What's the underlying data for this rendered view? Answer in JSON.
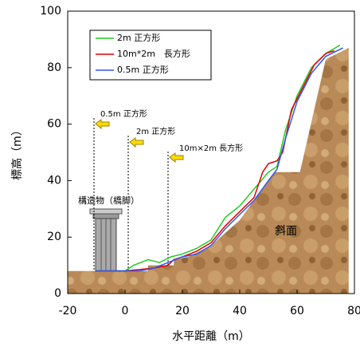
{
  "chart_data": {
    "type": "line",
    "x_label": "水平距離（m）",
    "y_label": "標高（m）",
    "xlim": [
      -20,
      80
    ],
    "xticks": [
      -20,
      0,
      20,
      40,
      60,
      80
    ],
    "ylim": [
      0,
      100
    ],
    "yticks": [
      0,
      20,
      40,
      60,
      80,
      100
    ],
    "grid": false,
    "legend": "upper left",
    "annotations": [
      "0.5m 正方形",
      "2m 正方形",
      "10m×2m 長方形",
      "構造物（橋脚）",
      "斜面"
    ],
    "series": [
      {
        "name": "2m 正方形",
        "color": "#22cc22",
        "x": [
          -10,
          0,
          3,
          8,
          12,
          16,
          20,
          25,
          30,
          35,
          40,
          45,
          50,
          53,
          56,
          60,
          65,
          70,
          75
        ],
        "values": [
          8,
          8,
          10,
          12,
          11,
          13,
          14,
          16,
          19,
          27,
          31,
          37,
          43,
          45,
          58,
          70,
          80,
          85,
          88
        ]
      },
      {
        "name": "10m*2m　長方形",
        "color": "#e00000",
        "x": [
          -10,
          0,
          10,
          15,
          17,
          20,
          25,
          30,
          35,
          40,
          45,
          48,
          50,
          53,
          55,
          58,
          62,
          66,
          70,
          73
        ],
        "values": [
          8,
          8,
          9,
          10,
          12,
          13,
          15,
          18,
          24,
          29,
          34,
          43,
          46,
          47,
          50,
          65,
          73,
          81,
          85,
          86
        ]
      },
      {
        "name": "0.5m 正方形",
        "color": "#3355ee",
        "x": [
          -10,
          0,
          5,
          10,
          15,
          20,
          25,
          30,
          35,
          40,
          45,
          50,
          53,
          56,
          60,
          65,
          70,
          76
        ],
        "values": [
          8,
          8,
          8,
          9,
          11,
          13,
          14,
          17,
          23,
          28,
          33,
          40,
          44,
          55,
          68,
          78,
          84,
          87
        ]
      }
    ]
  }
}
